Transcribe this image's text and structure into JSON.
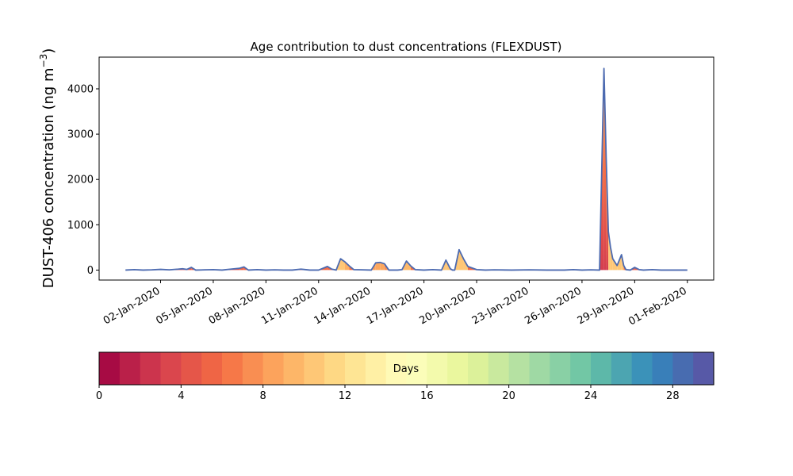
{
  "chart_data": {
    "type": "area",
    "title": "Age contribution to dust concentrations (FLEXDUST)",
    "ylabel": "DUST-406 concentration (ng m",
    "ylabel_sup": "−3",
    "ylabel_close": ")",
    "ylim": [
      -220,
      4700
    ],
    "yticks": [
      0,
      1000,
      2000,
      3000,
      4000
    ],
    "ytick_labels": [
      "0",
      "1000",
      "2000",
      "3000",
      "4000"
    ],
    "xlim": [
      "2019-12-29T12:00",
      "2020-02-02T12:00"
    ],
    "xtick_dates": [
      "2020-01-02",
      "2020-01-05",
      "2020-01-08",
      "2020-01-11",
      "2020-01-14",
      "2020-01-17",
      "2020-01-20",
      "2020-01-23",
      "2020-01-26",
      "2020-01-29",
      "2020-02-01"
    ],
    "xtick_labels": [
      "02-Jan-2020",
      "05-Jan-2020",
      "08-Jan-2020",
      "11-Jan-2020",
      "14-Jan-2020",
      "17-Jan-2020",
      "20-Jan-2020",
      "23-Jan-2020",
      "26-Jan-2020",
      "29-Jan-2020",
      "01-Feb-2020"
    ],
    "total_series": {
      "x": [
        "2019-12-31T00:00",
        "2019-12-31T12:00",
        "2020-01-01T00:00",
        "2020-01-01T12:00",
        "2020-01-02T00:00",
        "2020-01-02T12:00",
        "2020-01-03T00:00",
        "2020-01-03T06:00",
        "2020-01-03T12:00",
        "2020-01-03T18:00",
        "2020-01-04T00:00",
        "2020-01-04T12:00",
        "2020-01-05T00:00",
        "2020-01-05T12:00",
        "2020-01-06T00:00",
        "2020-01-06T12:00",
        "2020-01-06T18:00",
        "2020-01-07T00:00",
        "2020-01-07T12:00",
        "2020-01-08T00:00",
        "2020-01-08T12:00",
        "2020-01-09T00:00",
        "2020-01-09T12:00",
        "2020-01-10T00:00",
        "2020-01-10T12:00",
        "2020-01-11T00:00",
        "2020-01-11T12:00",
        "2020-01-11T18:00",
        "2020-01-12T00:00",
        "2020-01-12T06:00",
        "2020-01-12T12:00",
        "2020-01-12T18:00",
        "2020-01-13T00:00",
        "2020-01-13T12:00",
        "2020-01-14T00:00",
        "2020-01-14T06:00",
        "2020-01-14T12:00",
        "2020-01-14T18:00",
        "2020-01-15T00:00",
        "2020-01-15T12:00",
        "2020-01-15T18:00",
        "2020-01-16T00:00",
        "2020-01-16T06:00",
        "2020-01-16T12:00",
        "2020-01-17T00:00",
        "2020-01-17T12:00",
        "2020-01-18T00:00",
        "2020-01-18T06:00",
        "2020-01-18T12:00",
        "2020-01-18T15:00",
        "2020-01-18T18:00",
        "2020-01-19T00:00",
        "2020-01-19T06:00",
        "2020-01-19T12:00",
        "2020-01-20T00:00",
        "2020-01-20T12:00",
        "2020-01-21T00:00",
        "2020-01-22T00:00",
        "2020-01-23T00:00",
        "2020-01-24T00:00",
        "2020-01-25T00:00",
        "2020-01-25T12:00",
        "2020-01-26T00:00",
        "2020-01-26T12:00",
        "2020-01-27T00:00",
        "2020-01-27T06:00",
        "2020-01-27T09:00",
        "2020-01-27T12:00",
        "2020-01-27T15:00",
        "2020-01-27T18:00",
        "2020-01-28T00:00",
        "2020-01-28T06:00",
        "2020-01-28T09:00",
        "2020-01-28T12:00",
        "2020-01-28T18:00",
        "2020-01-29T00:00",
        "2020-01-29T06:00",
        "2020-01-29T12:00",
        "2020-01-30T00:00",
        "2020-01-30T12:00",
        "2020-01-31T00:00",
        "2020-01-31T12:00",
        "2020-02-01T00:00"
      ],
      "y": [
        0,
        10,
        0,
        5,
        15,
        5,
        20,
        30,
        15,
        60,
        0,
        5,
        10,
        0,
        20,
        40,
        70,
        0,
        10,
        0,
        5,
        0,
        0,
        20,
        0,
        0,
        80,
        20,
        0,
        250,
        180,
        90,
        10,
        5,
        0,
        160,
        170,
        140,
        0,
        0,
        10,
        200,
        90,
        10,
        0,
        10,
        0,
        220,
        30,
        0,
        0,
        450,
        250,
        80,
        10,
        0,
        5,
        0,
        5,
        0,
        0,
        10,
        0,
        5,
        0,
        4450,
        2500,
        850,
        500,
        250,
        100,
        340,
        100,
        10,
        0,
        60,
        10,
        0,
        10,
        0,
        0,
        0,
        0
      ]
    },
    "colorbar": {
      "label": "Days",
      "range": [
        0,
        30
      ],
      "n_bins": 30,
      "ticks": [
        0,
        4,
        8,
        12,
        16,
        20,
        24,
        28
      ],
      "tick_labels": [
        "0",
        "4",
        "8",
        "12",
        "16",
        "20",
        "24",
        "28"
      ],
      "colormap": "Spectral"
    },
    "line_color": "#4c6ab0",
    "colors": {
      "spectral": [
        "#9e0142",
        "#d53e4f",
        "#f46d43",
        "#fdae61",
        "#fee08b",
        "#ffffbf",
        "#e6f598",
        "#abdda4",
        "#66c2a5",
        "#3288bd",
        "#5e4fa2"
      ]
    }
  }
}
